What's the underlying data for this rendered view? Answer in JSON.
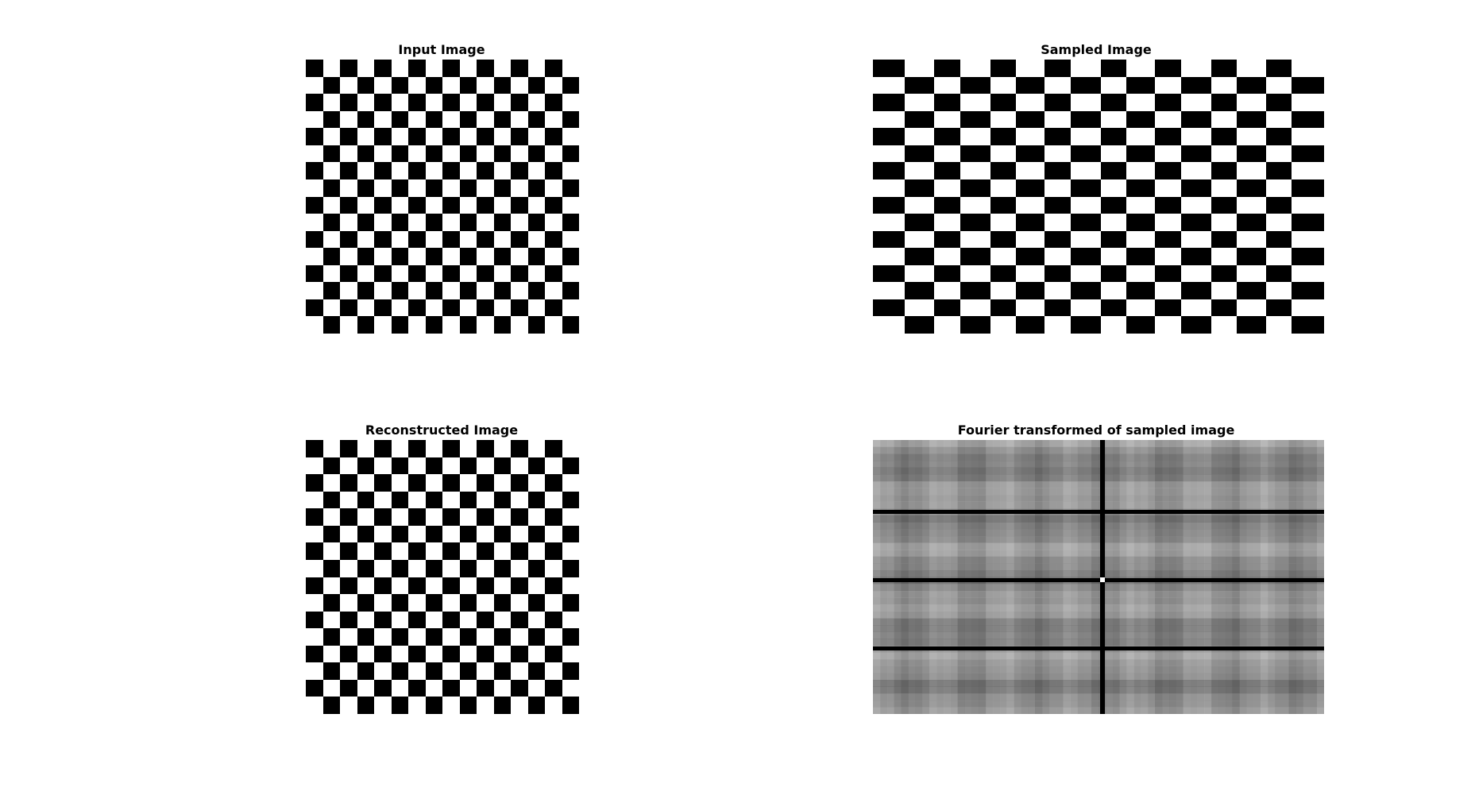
{
  "figure": {
    "panels": [
      {
        "title": "Input Image",
        "board": {
          "rows": 16,
          "cols": 16,
          "first_cell": "black",
          "dark_color": "#000000",
          "light_color": "#ffffff"
        }
      },
      {
        "title": "Sampled Image",
        "board": {
          "rows": 16,
          "cols": 16,
          "first_cell": "black",
          "dark_color": "#000000",
          "light_color": "#ffffff",
          "note_irregular_widths": true
        }
      },
      {
        "title": "Reconstructed Image",
        "board": {
          "rows": 16,
          "cols": 16,
          "first_cell": "black",
          "dark_color": "#000000",
          "light_color": "#ffffff"
        }
      },
      {
        "title": "Fourier transformed of sampled image",
        "spectrum": {
          "colormap": "gray",
          "background_gray": "#8a8a8a",
          "dark_line_color": "#000000",
          "center_color": "#ffffff"
        }
      }
    ]
  }
}
